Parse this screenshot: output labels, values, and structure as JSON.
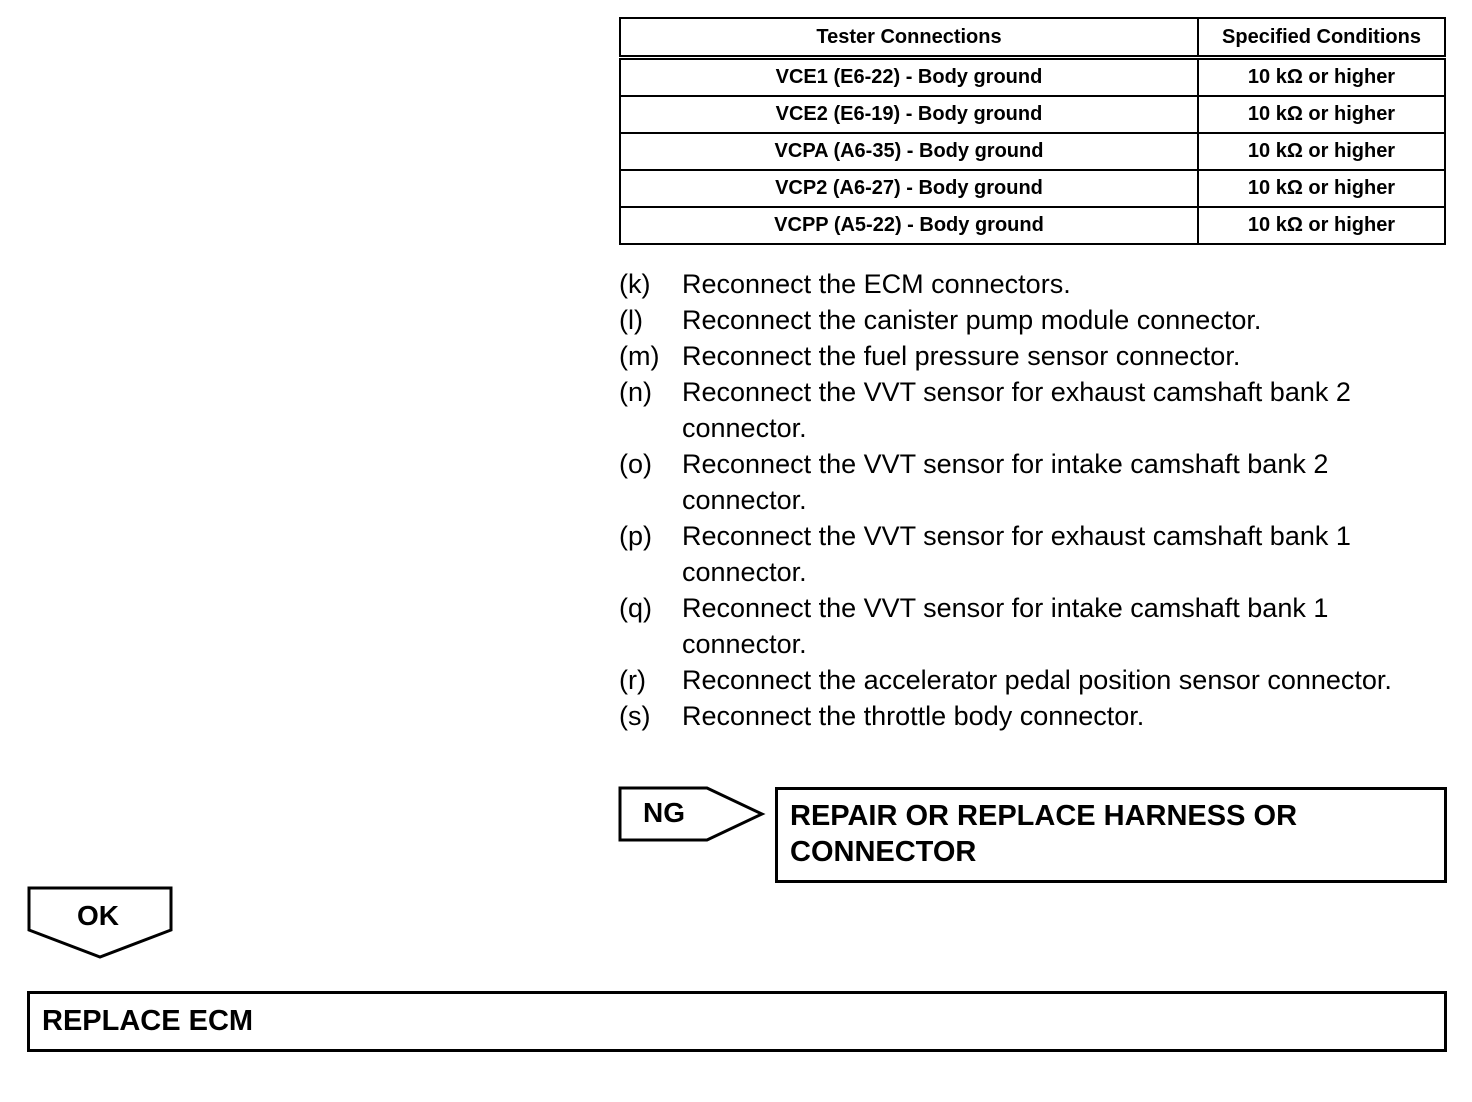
{
  "table": {
    "headers": [
      "Tester Connections",
      "Specified Conditions"
    ],
    "rows": [
      [
        "VCE1 (E6-22) - Body ground",
        "10 kΩ or higher"
      ],
      [
        "VCE2 (E6-19) - Body ground",
        "10 kΩ or higher"
      ],
      [
        "VCPA (A6-35) - Body ground",
        "10 kΩ or higher"
      ],
      [
        "VCP2 (A6-27) - Body ground",
        "10 kΩ or higher"
      ],
      [
        "VCPP (A5-22) - Body ground",
        "10 kΩ or higher"
      ]
    ]
  },
  "steps": [
    {
      "label": "(k)",
      "text": "Reconnect the ECM connectors."
    },
    {
      "label": "(l)",
      "text": "Reconnect the canister pump module connector."
    },
    {
      "label": "(m)",
      "text": "Reconnect the fuel pressure sensor connector."
    },
    {
      "label": "(n)",
      "text": "Reconnect the VVT sensor for exhaust camshaft bank 2 connector."
    },
    {
      "label": "(o)",
      "text": "Reconnect the VVT sensor for intake camshaft bank 2 connector."
    },
    {
      "label": "(p)",
      "text": "Reconnect the VVT sensor for exhaust camshaft bank 1 connector."
    },
    {
      "label": "(q)",
      "text": "Reconnect the VVT sensor for intake camshaft bank 1 connector."
    },
    {
      "label": "(r)",
      "text": "Reconnect the accelerator pedal position sensor connector."
    },
    {
      "label": "(s)",
      "text": "Reconnect the throttle body connector."
    }
  ],
  "ng": {
    "label": "NG",
    "action": "REPAIR OR REPLACE HARNESS OR CONNECTOR"
  },
  "ok": {
    "label": "OK",
    "action": "REPLACE ECM"
  }
}
